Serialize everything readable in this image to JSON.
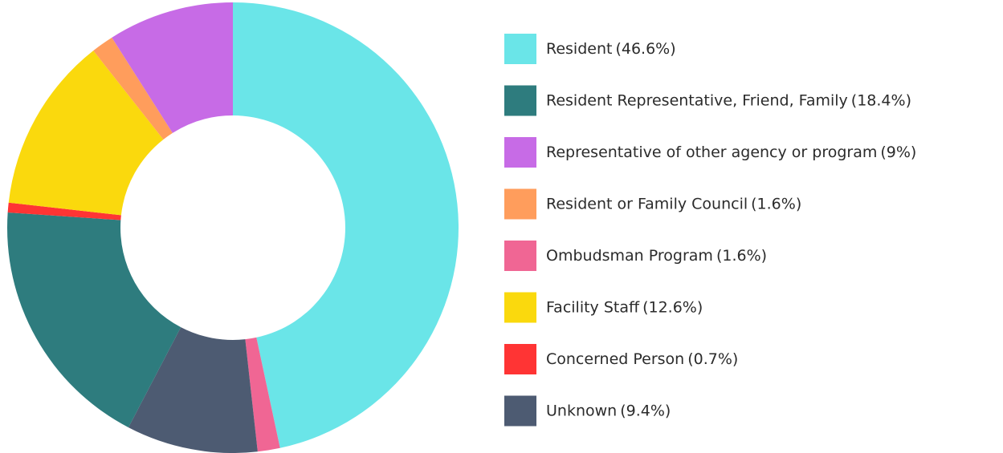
{
  "chart_data": {
    "type": "donut",
    "categories": [
      "Resident",
      "Resident Representative, Friend, Family",
      "Representative of other agency or program",
      "Resident or Family Council",
      "Ombudsman Program",
      "Facility Staff",
      "Concerned Person",
      "Unknown"
    ],
    "values": [
      46.6,
      18.4,
      9,
      1.6,
      1.6,
      12.6,
      0.7,
      9.4
    ],
    "value_labels": [
      "(46.6%)",
      "(18.4%)",
      "(9%)",
      "(1.6%)",
      "(1.6%)",
      "(12.6%)",
      "(0.7%)",
      "(9.4%)"
    ],
    "colors": [
      "#6ae5e8",
      "#2e7c7e",
      "#c76be6",
      "#ff9d5c",
      "#f06694",
      "#fad90d",
      "#ff3434",
      "#4d5b72"
    ],
    "slice_order": [
      0,
      4,
      7,
      1,
      6,
      5,
      3,
      2
    ],
    "legend": "right"
  }
}
